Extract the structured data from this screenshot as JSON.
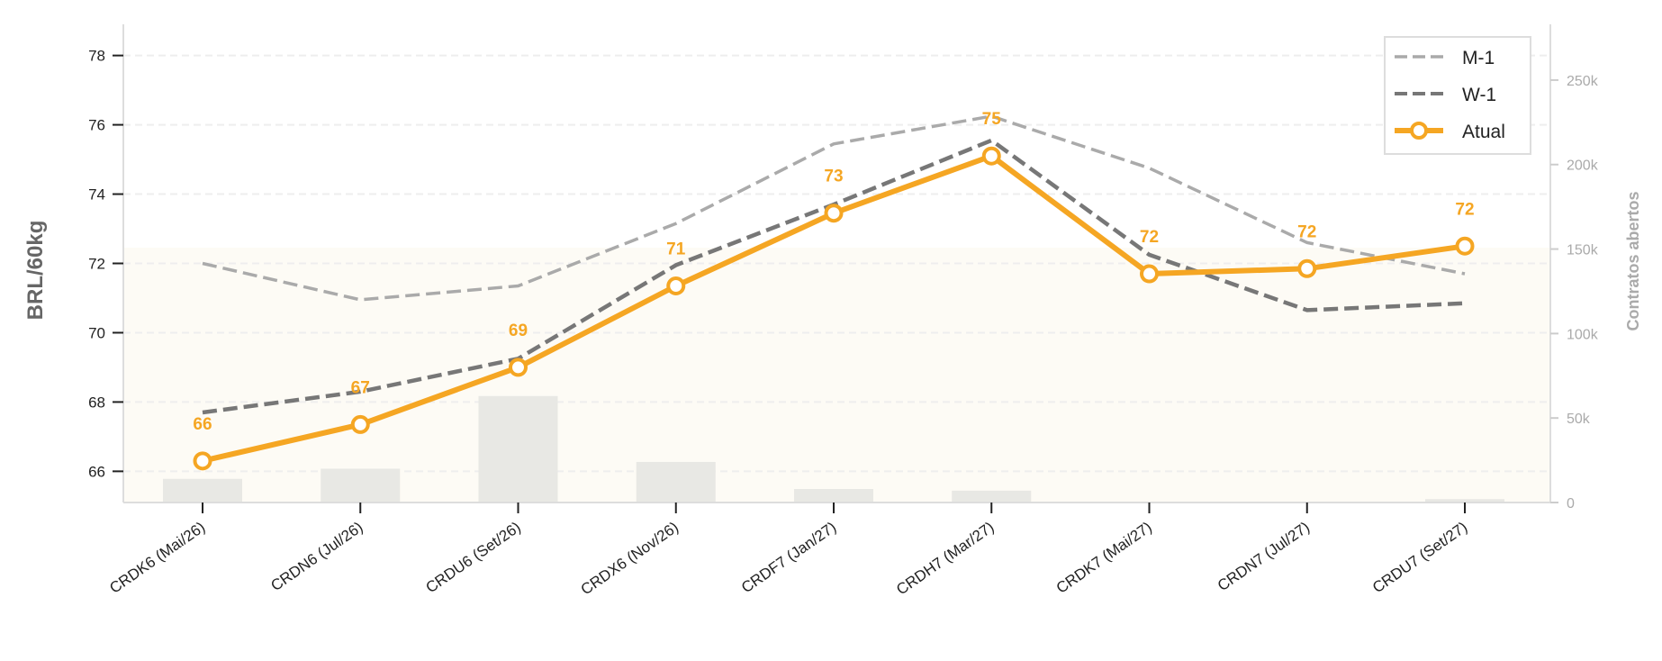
{
  "chart_data": {
    "type": "line",
    "categories": [
      "CRDK6 (Mai/26)",
      "CRDN6 (Jul/26)",
      "CRDU6 (Set/26)",
      "CRDX6 (Nov/26)",
      "CRDF7 (Jan/27)",
      "CRDH7 (Mar/27)",
      "CRDK7 (Mai/27)",
      "CRDN7 (Jul/27)",
      "CRDU7 (Set/27)"
    ],
    "ylabel": "BRL/60kg",
    "y2label": "Contratos abertos",
    "ylim": [
      65.1,
      78.9
    ],
    "y2lim": [
      0,
      283000
    ],
    "yticks": [
      66,
      68,
      70,
      72,
      74,
      76,
      78
    ],
    "y2ticks": [
      0,
      50000,
      100000,
      150000,
      200000,
      250000
    ],
    "y2tick_labels": [
      "0",
      "50k",
      "100k",
      "150k",
      "200k",
      "250k"
    ],
    "grid": true,
    "legend_position": "top-right",
    "series": [
      {
        "name": "M-1",
        "style": "dashed",
        "color": "#aaaaaa",
        "values": [
          72.0,
          70.95,
          71.35,
          73.15,
          75.45,
          76.25,
          74.75,
          72.6,
          71.7
        ]
      },
      {
        "name": "W-1",
        "style": "dashed",
        "color": "#777777",
        "values": [
          67.7,
          68.3,
          69.25,
          71.95,
          73.7,
          75.55,
          72.25,
          70.65,
          70.85
        ]
      },
      {
        "name": "Atual",
        "style": "solid-markers",
        "color": "#f5a623",
        "values": [
          66.3,
          67.35,
          69.0,
          71.35,
          73.45,
          75.1,
          71.7,
          71.85,
          72.5
        ],
        "data_labels": [
          "66",
          "67",
          "69",
          "71",
          "73",
          "75",
          "72",
          "72",
          "72"
        ]
      }
    ],
    "open_interest": [
      14000,
      20000,
      63000,
      24000,
      8000,
      7000,
      0,
      0,
      2000
    ],
    "colors": {
      "accent": "#f5a623",
      "bars": "#e8e8e4",
      "fill": "#fdfbf5",
      "grid": "#eeeeee"
    }
  }
}
